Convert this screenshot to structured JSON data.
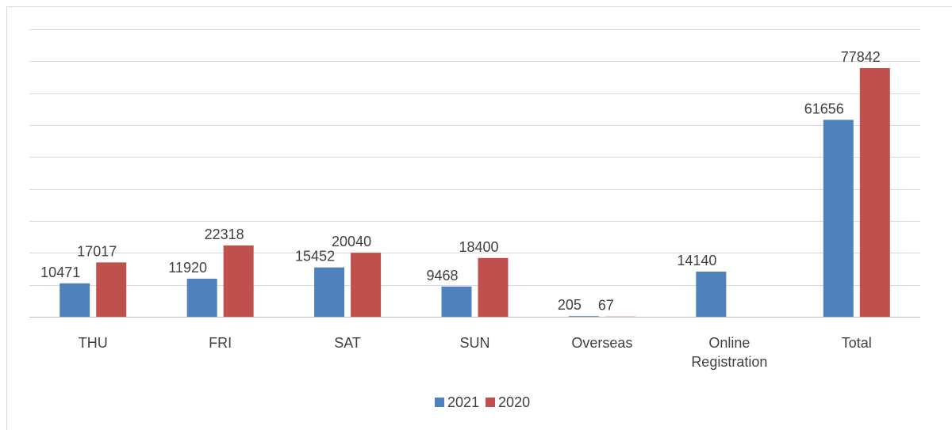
{
  "chart_data": {
    "type": "bar",
    "categories": [
      "THU",
      "FRI",
      "SAT",
      "SUN",
      "Overseas",
      "Online Registration",
      "Total"
    ],
    "series": [
      {
        "name": "2021",
        "color": "#4f81bd",
        "values": [
          10471,
          11920,
          15452,
          9468,
          205,
          14140,
          61656
        ]
      },
      {
        "name": "2020",
        "color": "#c0504d",
        "values": [
          17017,
          22318,
          20040,
          18400,
          67,
          null,
          77842
        ]
      }
    ],
    "ylim": [
      0,
      90000
    ],
    "yticks": [
      0,
      10000,
      20000,
      30000,
      40000,
      50000,
      60000,
      70000,
      80000,
      90000
    ],
    "grid": true,
    "legend": "bottom"
  }
}
